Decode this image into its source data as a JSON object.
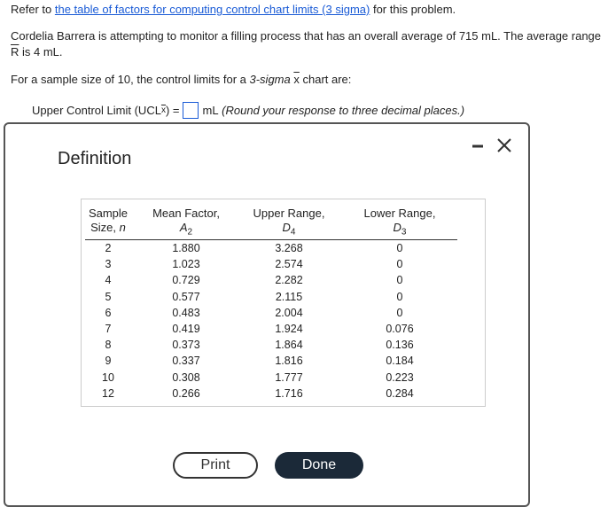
{
  "problem": {
    "intro_prefix": "Refer to ",
    "intro_link": "the table of factors for computing control chart limits (3 sigma)",
    "intro_suffix": " for this problem.",
    "statement_line1": "Cordelia Barrera is attempting to monitor a filling process that has an overall average of 715 mL. The average range",
    "range_symbol": "R",
    "statement_line2": " is 4 mL.",
    "question_prefix": "For a sample size of 10, the control limits for a ",
    "question_italic": "3-sigma",
    "question_symbol": "x",
    "question_suffix": " chart are:",
    "answer_label": "Upper Control Limit (UCL",
    "answer_sub": "x",
    "answer_eq": ") =",
    "answer_unit": "mL",
    "answer_hint": "(Round your response to three decimal places.)"
  },
  "dialog": {
    "title": "Definition",
    "table": {
      "headers": [
        {
          "line1": "Sample",
          "line2": "Size, ",
          "symbol": "n"
        },
        {
          "line1": "Mean Factor,",
          "symbol": "A",
          "sub": "2"
        },
        {
          "line1": "Upper Range,",
          "symbol": "D",
          "sub": "4"
        },
        {
          "line1": "Lower Range,",
          "symbol": "D",
          "sub": "3"
        }
      ],
      "rows": [
        [
          "2",
          "1.880",
          "3.268",
          "0"
        ],
        [
          "3",
          "1.023",
          "2.574",
          "0"
        ],
        [
          "4",
          "0.729",
          "2.282",
          "0"
        ],
        [
          "5",
          "0.577",
          "2.115",
          "0"
        ],
        [
          "6",
          "0.483",
          "2.004",
          "0"
        ],
        [
          "7",
          "0.419",
          "1.924",
          "0.076"
        ],
        [
          "8",
          "0.373",
          "1.864",
          "0.136"
        ],
        [
          "9",
          "0.337",
          "1.816",
          "0.184"
        ],
        [
          "10",
          "0.308",
          "1.777",
          "0.223"
        ],
        [
          "12",
          "0.266",
          "1.716",
          "0.284"
        ]
      ]
    },
    "print_button": "Print",
    "done_button": "Done"
  }
}
